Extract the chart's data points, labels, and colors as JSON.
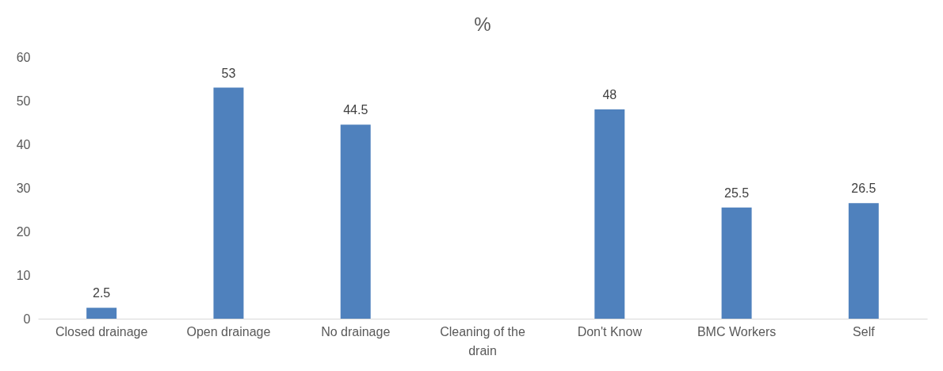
{
  "chart_data": {
    "type": "bar",
    "title": "%",
    "categories": [
      "Closed drainage",
      "Open drainage",
      "No drainage",
      "Cleaning of the drain",
      "Don't Know",
      "BMC Workers",
      "Self"
    ],
    "values": [
      2.5,
      53,
      44.5,
      null,
      48,
      25.5,
      26.5
    ],
    "color": "#4f81bd",
    "ylim": [
      0,
      60
    ],
    "yticks": [
      0,
      10,
      20,
      30,
      40,
      50,
      60
    ],
    "grid": false,
    "data_labels": true
  }
}
